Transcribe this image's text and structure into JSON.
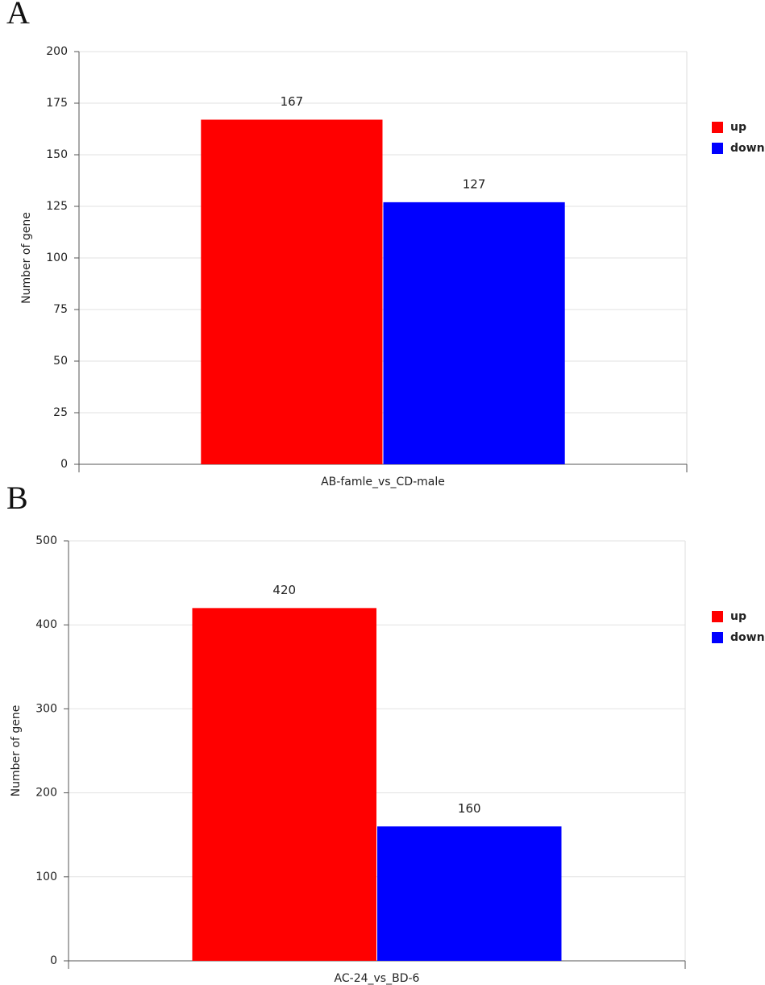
{
  "chart_data": [
    {
      "type": "bar",
      "panel": "A",
      "ylabel": "Number of gene",
      "categories": [
        "AB-famle_vs_CD-male"
      ],
      "series": [
        {
          "name": "up",
          "color": "#ff0000",
          "values": [
            167
          ]
        },
        {
          "name": "down",
          "color": "#0000ff",
          "values": [
            127
          ]
        }
      ],
      "ylim": [
        0,
        200
      ],
      "yticks": [
        0,
        25,
        50,
        75,
        100,
        125,
        150,
        175,
        200
      ],
      "grid": true,
      "legend": "right"
    },
    {
      "type": "bar",
      "panel": "B",
      "ylabel": "Number of gene",
      "categories": [
        "AC-24_vs_BD-6"
      ],
      "series": [
        {
          "name": "up",
          "color": "#ff0000",
          "values": [
            420
          ]
        },
        {
          "name": "down",
          "color": "#0000ff",
          "values": [
            160
          ]
        }
      ],
      "ylim": [
        0,
        500
      ],
      "yticks": [
        0,
        100,
        200,
        300,
        400,
        500
      ],
      "grid": true,
      "legend": "right"
    }
  ]
}
